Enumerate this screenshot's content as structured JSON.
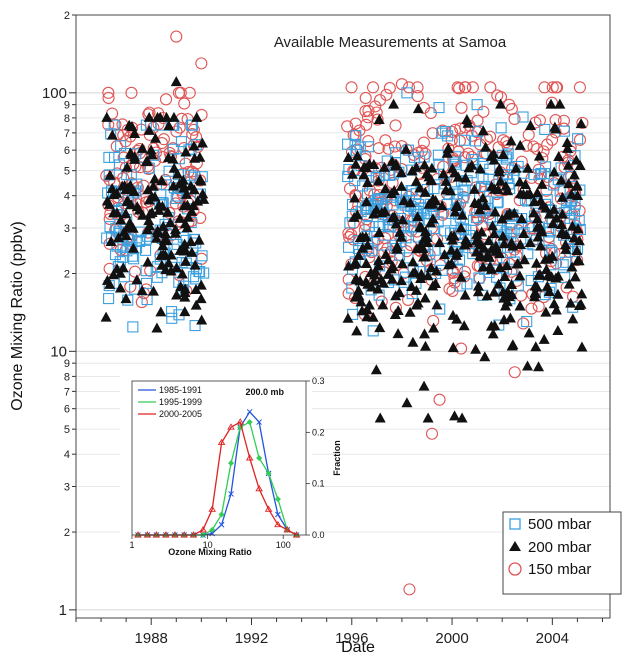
{
  "chart_data": [
    {
      "type": "scatter",
      "title": "Available Measurements at Samoa",
      "xlabel": "Date",
      "ylabel": "Ozone Mixing Ratio (ppbv)",
      "x_scale": "date",
      "y_scale": "log",
      "xlim": [
        "1985.0",
        "2006.3"
      ],
      "ylim": [
        0.93,
        200
      ],
      "x_ticks": [
        "1988",
        "1992",
        "1996",
        "2000",
        "2004"
      ],
      "y_major_ticks": [
        {
          "value": 1,
          "label": "1"
        },
        {
          "value": 10,
          "label": "10"
        },
        {
          "value": 100,
          "label": "100"
        }
      ],
      "y_minor_ticks": [
        {
          "value": 2,
          "label": "2"
        },
        {
          "value": 3,
          "label": "3"
        },
        {
          "value": 4,
          "label": "4"
        },
        {
          "value": 5,
          "label": "5"
        },
        {
          "value": 6,
          "label": "6"
        },
        {
          "value": 7,
          "label": "7"
        },
        {
          "value": 8,
          "label": "8"
        },
        {
          "value": 9,
          "label": "9"
        },
        {
          "value": 20,
          "label": "2"
        },
        {
          "value": 30,
          "label": "3"
        },
        {
          "value": 40,
          "label": "4"
        },
        {
          "value": 50,
          "label": "5"
        },
        {
          "value": 60,
          "label": "6"
        },
        {
          "value": 70,
          "label": "7"
        },
        {
          "value": 80,
          "label": "8"
        },
        {
          "value": 90,
          "label": "9"
        },
        {
          "value": 200,
          "label": "2"
        }
      ],
      "grid": "horizontal",
      "legend_position": "bottom-right",
      "series": [
        {
          "name": "500 mbar",
          "marker": "open-square",
          "color": "#3aa0e0",
          "periods": [
            {
              "start": "1986.2",
              "end": "1990.1",
              "median": 32,
              "spread": 0.34,
              "min": 11.5,
              "max": 75
            },
            {
              "start": "1995.8",
              "end": "2005.2",
              "median": 33,
              "spread": 0.3,
              "min": 12,
              "max": 100
            }
          ],
          "outliers": [
            [
              1989.8,
              63
            ],
            [
              1989.1,
              18.5
            ],
            [
              1986.3,
              16
            ],
            [
              1998.2,
              100
            ],
            [
              2001.0,
              90
            ]
          ]
        },
        {
          "name": "200 mbar",
          "marker": "filled-triangle",
          "color": "#111111",
          "periods": [
            {
              "start": "1986.2",
              "end": "1990.1",
              "median": 33,
              "spread": 0.38,
              "min": 11.5,
              "max": 80
            },
            {
              "start": "1995.8",
              "end": "2005.2",
              "median": 26,
              "spread": 0.42,
              "min": 5.5,
              "max": 90
            }
          ],
          "outliers": [
            [
              1989.0,
              110
            ],
            [
              1986.2,
              13.5
            ],
            [
              2000.1,
              5.6
            ],
            [
              2000.4,
              5.5
            ],
            [
              1998.2,
              6.3
            ],
            [
              2004.3,
              90
            ]
          ]
        },
        {
          "name": "150 mbar",
          "marker": "open-circle",
          "color": "#e05555",
          "periods": [
            {
              "start": "1986.2",
              "end": "1990.1",
              "median": 45,
              "spread": 0.36,
              "min": 12,
              "max": 100
            },
            {
              "start": "1995.8",
              "end": "2005.2",
              "median": 40,
              "spread": 0.4,
              "min": 8,
              "max": 105
            }
          ],
          "outliers": [
            [
              1989.0,
              165
            ],
            [
              1990.0,
              130
            ],
            [
              1998.3,
              1.2
            ],
            [
              1999.2,
              4.8
            ],
            [
              1999.5,
              6.5
            ],
            [
              2002.5,
              8.3
            ],
            [
              1998.0,
              108
            ]
          ]
        }
      ]
    },
    {
      "type": "line",
      "title": "200.0 mb",
      "xlabel": "Ozone Mixing Ratio",
      "ylabel": "Fraction",
      "x_scale": "log",
      "xlim": [
        1,
        200
      ],
      "ylim": [
        0,
        0.3
      ],
      "x_ticks": [
        "1",
        "10",
        "100"
      ],
      "y_ticks": [
        "0.0",
        "0.1",
        "0.2",
        "0.3"
      ],
      "x": [
        1.2,
        1.6,
        2.1,
        2.8,
        3.7,
        4.9,
        6.5,
        8.7,
        11.5,
        15.3,
        20.4,
        27,
        36,
        48,
        64,
        85,
        113,
        150
      ],
      "series": [
        {
          "name": "1985-1991",
          "color": "#2255dd",
          "marker": "x",
          "values": [
            0,
            0,
            0,
            0,
            0,
            0,
            0,
            0,
            0.003,
            0.02,
            0.08,
            0.21,
            0.24,
            0.22,
            0.12,
            0.04,
            0.01,
            0
          ]
        },
        {
          "name": "1995-1999",
          "color": "#33cc55",
          "marker": "diamond",
          "values": [
            0,
            0,
            0,
            0,
            0,
            0,
            0,
            0,
            0.01,
            0.04,
            0.14,
            0.21,
            0.22,
            0.15,
            0.12,
            0.07,
            0.01,
            0
          ]
        },
        {
          "name": "2000-2005",
          "color": "#e02222",
          "marker": "triangle",
          "values": [
            0,
            0,
            0,
            0,
            0,
            0,
            0,
            0.01,
            0.05,
            0.18,
            0.21,
            0.22,
            0.15,
            0.09,
            0.05,
            0.02,
            0.01,
            0
          ]
        }
      ]
    }
  ]
}
